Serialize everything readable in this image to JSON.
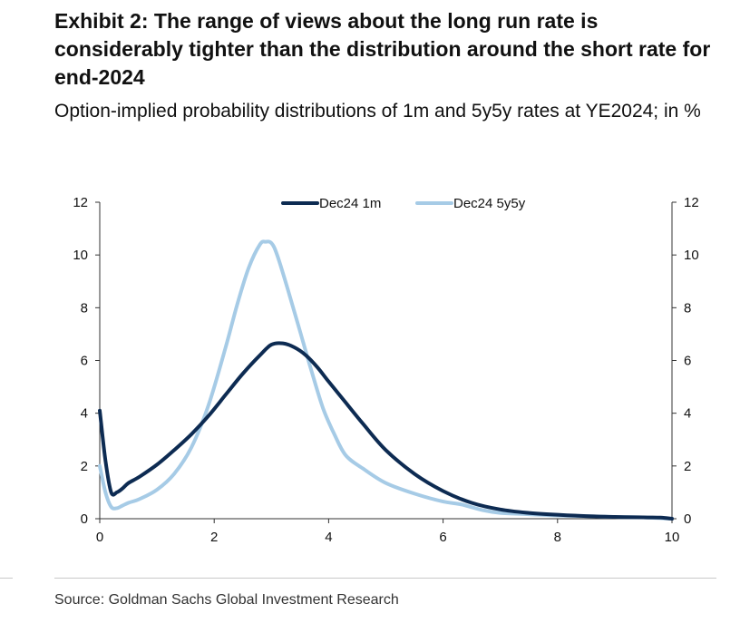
{
  "title": "Exhibit 2: The range of views about the long run rate is considerably tighter than the distribution around the short rate for end-2024",
  "subtitle": "Option-implied probability distributions of 1m and 5y5y rates at YE2024; in %",
  "source": "Source: Goldman Sachs Global Investment Research",
  "chart_data": {
    "type": "line",
    "title": "",
    "xlabel": "",
    "ylabel": "",
    "xlim": [
      0,
      10
    ],
    "ylim": [
      0,
      12
    ],
    "x_ticks": [
      0,
      2,
      4,
      6,
      8,
      10
    ],
    "y_ticks": [
      0,
      2,
      4,
      6,
      8,
      10,
      12
    ],
    "grid": false,
    "legend_position": "top-center",
    "series": [
      {
        "name": "Dec24 1m",
        "color": "#0d2b52",
        "x": [
          0.0,
          0.1,
          0.2,
          0.3,
          0.4,
          0.5,
          0.7,
          1.0,
          1.3,
          1.6,
          1.9,
          2.2,
          2.5,
          2.8,
          3.0,
          3.2,
          3.4,
          3.6,
          3.8,
          4.0,
          4.3,
          4.6,
          5.0,
          5.5,
          6.0,
          6.5,
          7.0,
          7.5,
          8.0,
          8.5,
          9.0,
          9.5,
          9.8,
          10.0
        ],
        "y": [
          4.1,
          2.2,
          1.0,
          1.0,
          1.15,
          1.35,
          1.6,
          2.05,
          2.6,
          3.2,
          3.9,
          4.7,
          5.5,
          6.2,
          6.6,
          6.65,
          6.5,
          6.2,
          5.75,
          5.2,
          4.4,
          3.6,
          2.6,
          1.7,
          1.05,
          0.6,
          0.35,
          0.22,
          0.15,
          0.1,
          0.07,
          0.05,
          0.04,
          0.0
        ]
      },
      {
        "name": "Dec24 5y5y",
        "color": "#a6cbe6",
        "x": [
          0.0,
          0.1,
          0.2,
          0.3,
          0.4,
          0.5,
          0.7,
          1.0,
          1.3,
          1.6,
          1.9,
          2.2,
          2.4,
          2.6,
          2.8,
          2.9,
          3.0,
          3.1,
          3.3,
          3.5,
          3.7,
          3.9,
          4.1,
          4.3,
          4.6,
          5.0,
          5.5,
          6.0,
          6.3,
          6.7,
          7.0,
          7.5,
          8.0,
          9.0,
          9.5,
          10.0
        ],
        "y": [
          2.0,
          1.0,
          0.45,
          0.4,
          0.5,
          0.6,
          0.75,
          1.1,
          1.7,
          2.7,
          4.3,
          6.5,
          8.1,
          9.5,
          10.4,
          10.5,
          10.45,
          10.0,
          8.6,
          7.1,
          5.6,
          4.2,
          3.2,
          2.4,
          1.9,
          1.35,
          0.95,
          0.65,
          0.55,
          0.32,
          0.22,
          0.17,
          0.12,
          0.07,
          0.05,
          0.0
        ]
      }
    ]
  }
}
